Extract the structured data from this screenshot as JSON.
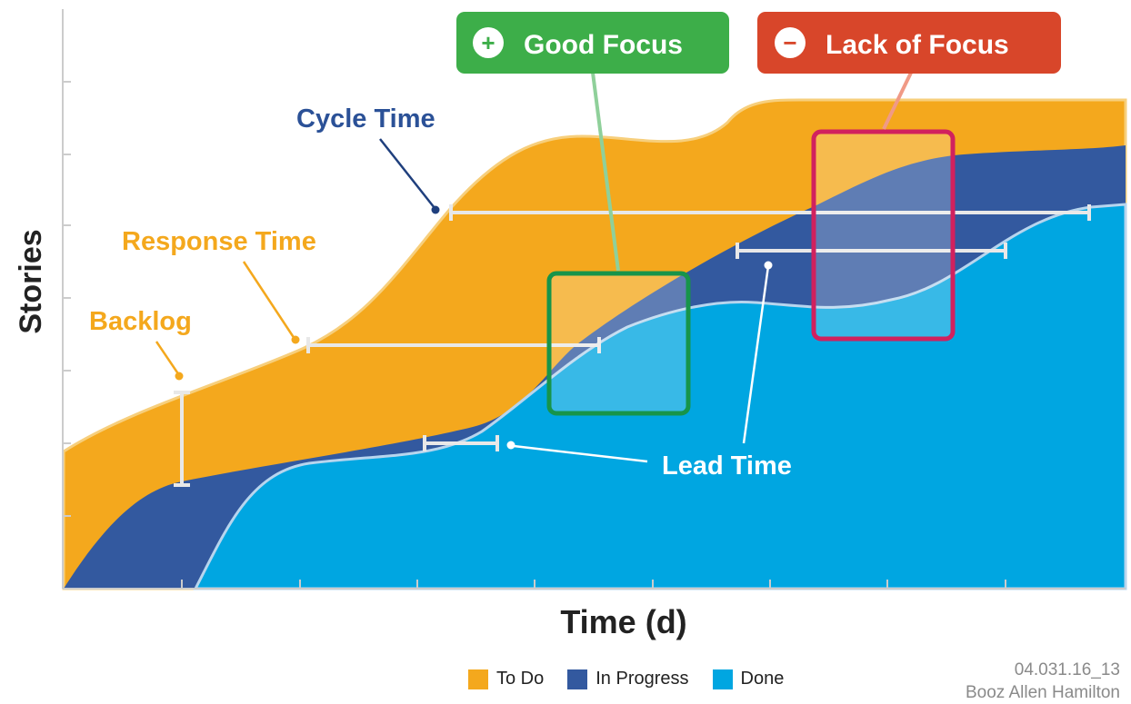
{
  "chart_data": {
    "type": "area",
    "subtype": "cumulative-flow",
    "xlabel": "Time (d)",
    "ylabel": "Stories",
    "series": [
      {
        "name": "To Do",
        "color": "#f4a81d"
      },
      {
        "name": "In Progress",
        "color": "#33599f"
      },
      {
        "name": "Done",
        "color": "#00a6e1"
      }
    ],
    "annotations": {
      "backlog": "Backlog",
      "response_time": "Response Time",
      "cycle_time": "Cycle Time",
      "lead_time": "Lead Time"
    },
    "callouts": [
      {
        "label": "Good Focus",
        "symbol": "+",
        "color": "#3dae49",
        "frame": "#17944a"
      },
      {
        "label": "Lack of Focus",
        "symbol": "−",
        "color": "#d8462a",
        "frame": "#d1215e"
      }
    ]
  },
  "credit": {
    "code": "04.031.16_13",
    "org": "Booz Allen Hamilton"
  }
}
